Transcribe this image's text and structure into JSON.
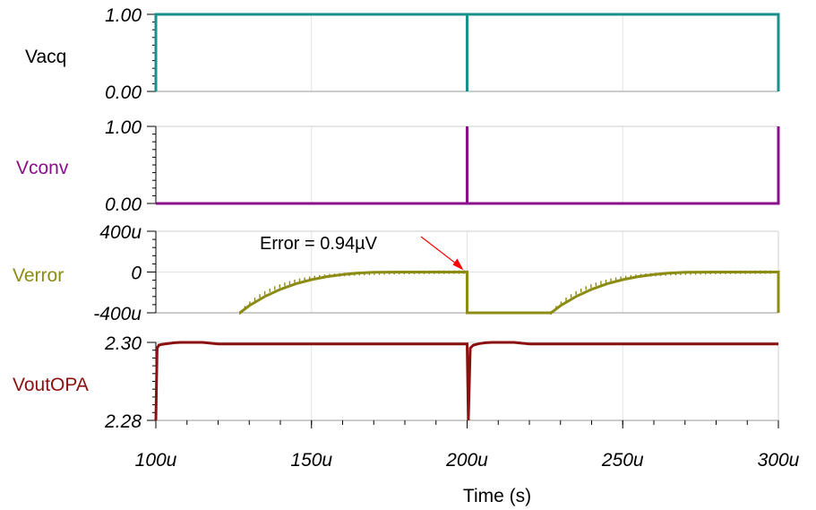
{
  "chart_data": {
    "type": "line",
    "xlabel": "Time (s)",
    "x_range": [
      100,
      300
    ],
    "x_unit": "us",
    "x_ticks": [
      {
        "value": 100,
        "label": "100u"
      },
      {
        "value": 150,
        "label": "150u"
      },
      {
        "value": 200,
        "label": "200u"
      },
      {
        "value": 250,
        "label": "250u"
      },
      {
        "value": 300,
        "label": "300u"
      }
    ],
    "grid": true,
    "series": [
      {
        "name": "Vacq",
        "color": "#1a8f8c",
        "ylim": [
          0,
          1
        ],
        "y_ticks": [
          {
            "value": 1,
            "label": "1.00"
          },
          {
            "value": 0,
            "label": "0.00"
          }
        ],
        "x": [
          100,
          100,
          200,
          200,
          200,
          200,
          300,
          300
        ],
        "y": [
          0,
          1,
          1,
          0,
          0,
          1,
          1,
          0
        ]
      },
      {
        "name": "Vconv",
        "color": "#8a0f8a",
        "ylim": [
          0,
          1
        ],
        "y_ticks": [
          {
            "value": 1,
            "label": "1.00"
          },
          {
            "value": 0,
            "label": "0.00"
          }
        ],
        "x": [
          100,
          200,
          200,
          200,
          300,
          300
        ],
        "y": [
          0,
          0,
          1,
          0,
          0,
          1
        ]
      },
      {
        "name": "Verror",
        "color": "#8c8c14",
        "ylim": [
          -400,
          400
        ],
        "y_unit": "uV",
        "y_ticks": [
          {
            "value": 400,
            "label": "400u"
          },
          {
            "value": 0,
            "label": "0"
          },
          {
            "value": -400,
            "label": "-400u"
          }
        ],
        "x": [
          127,
          130,
          135,
          140,
          145,
          150,
          155,
          160,
          165,
          170,
          180,
          190,
          199.5,
          199.9,
          200,
          200,
          227,
          230,
          235,
          240,
          245,
          250,
          255,
          260,
          265,
          270,
          280,
          290,
          299.5,
          299.9,
          300,
          300
        ],
        "y": [
          -400,
          -330,
          -240,
          -170,
          -115,
          -75,
          -45,
          -25,
          -10,
          -3,
          0,
          0,
          0,
          0.94,
          0.94,
          -400,
          -400,
          -330,
          -240,
          -170,
          -115,
          -75,
          -45,
          -25,
          -10,
          -3,
          0,
          0,
          0,
          0.94,
          0.94,
          -400
        ]
      },
      {
        "name": "VoutOPA",
        "color": "#8b1010",
        "ylim": [
          2.28,
          2.3
        ],
        "y_ticks": [
          {
            "value": 2.3,
            "label": "2.30"
          },
          {
            "value": 2.28,
            "label": "2.28"
          }
        ],
        "x": [
          100,
          100.4,
          101,
          102,
          104,
          106,
          108,
          110,
          112,
          115,
          120,
          200,
          200.4,
          201,
          202,
          204,
          206,
          208,
          210,
          212,
          215,
          220,
          300
        ],
        "y": [
          2.28,
          2.2985,
          2.2993,
          2.2995,
          2.2997,
          2.2999,
          2.3003,
          2.3003,
          2.3002,
          2.3,
          2.2996,
          2.2996,
          2.28,
          2.2985,
          2.2993,
          2.2997,
          2.2999,
          2.3003,
          2.3003,
          2.3002,
          2.3,
          2.2996,
          2.2996
        ]
      }
    ],
    "annotations": [
      {
        "text": "Error = 0.94µV",
        "target_x": 200,
        "target_y": 0,
        "series": "Verror",
        "arrow_color": "#ff0000"
      }
    ]
  }
}
